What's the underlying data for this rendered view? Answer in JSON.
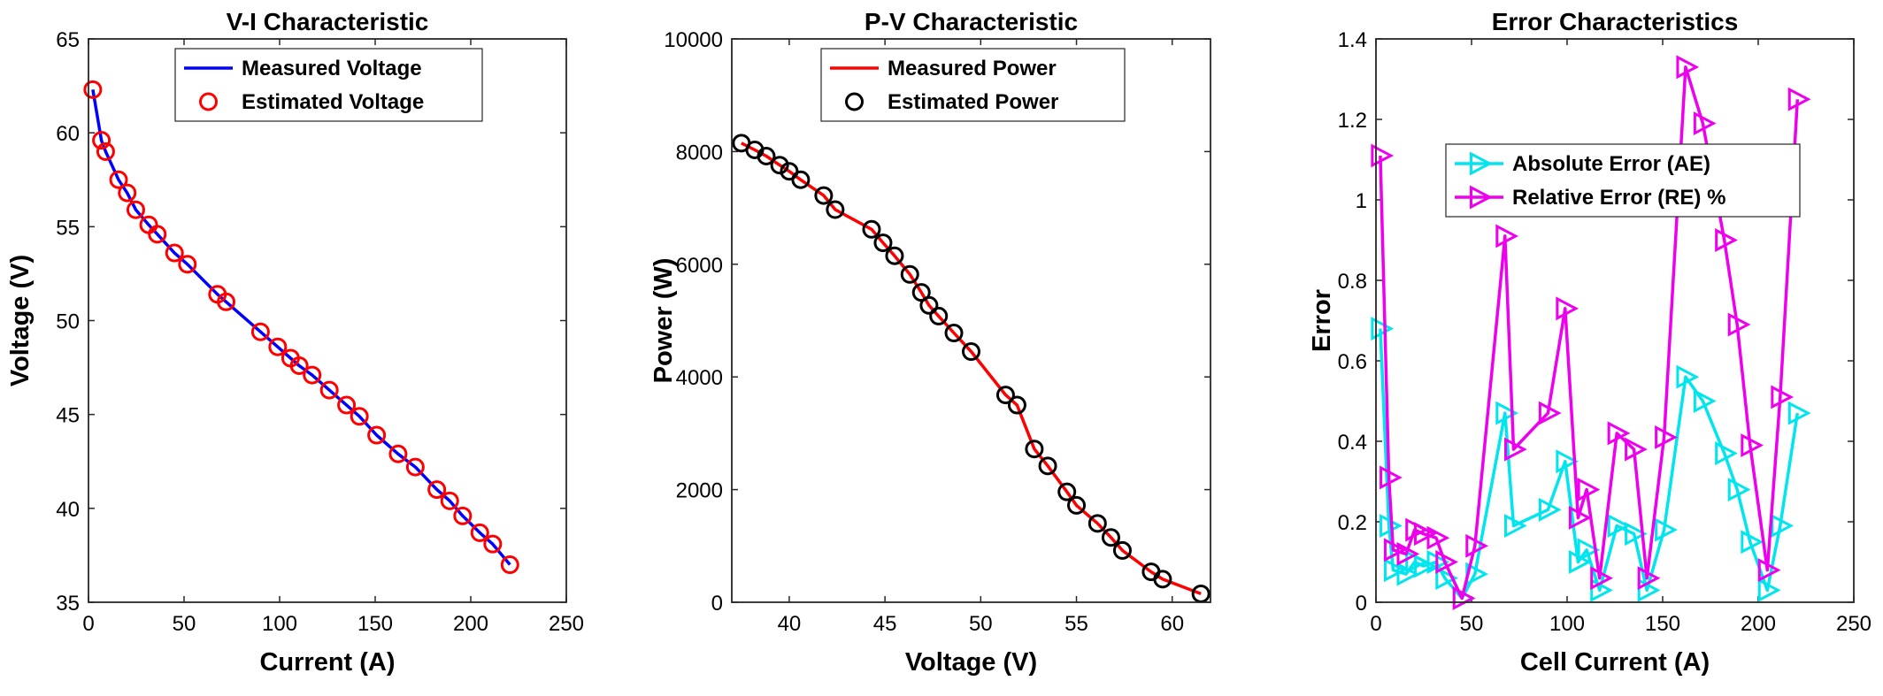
{
  "chart_data": [
    {
      "type": "scatter",
      "title": "V-I Characteristic",
      "xlabel": "Current (A)",
      "ylabel": "Voltage (V)",
      "xlim": [
        0,
        250
      ],
      "ylim": [
        35,
        65
      ],
      "xticks": [
        0,
        50,
        100,
        150,
        200,
        250
      ],
      "yticks": [
        35,
        40,
        45,
        50,
        55,
        60,
        65
      ],
      "legend_position": "top-center",
      "series": [
        {
          "name": "Measured Voltage",
          "style": "line",
          "color": "#0000ff",
          "x": [
            2.25,
            6.75,
            9,
            15.75,
            20.25,
            24.75,
            31.5,
            36,
            45,
            51.75,
            67.5,
            72,
            90,
            99,
            105.75,
            110.25,
            117,
            126,
            135,
            141.75,
            150.75,
            162,
            171,
            182.25,
            189,
            195.75,
            204.75,
            211.5,
            220.5
          ],
          "y": [
            62.3,
            59.6,
            59.0,
            57.5,
            56.8,
            55.9,
            55.1,
            54.6,
            53.6,
            53.0,
            51.4,
            51.0,
            49.4,
            48.6,
            48.0,
            47.6,
            47.1,
            46.3,
            45.5,
            44.9,
            43.9,
            42.9,
            42.2,
            41.0,
            40.4,
            39.6,
            38.7,
            38.1,
            37.0
          ]
        },
        {
          "name": "Estimated Voltage",
          "style": "marker",
          "marker": "circle",
          "color": "#ff0000",
          "x": [
            2.25,
            6.75,
            9,
            15.75,
            20.25,
            24.75,
            31.5,
            36,
            45,
            51.75,
            67.5,
            72,
            90,
            99,
            105.75,
            110.25,
            117,
            126,
            135,
            141.75,
            150.75,
            162,
            171,
            182.25,
            189,
            195.75,
            204.75,
            211.5,
            220.5
          ],
          "y": [
            62.3,
            59.6,
            59.0,
            57.5,
            56.8,
            55.9,
            55.1,
            54.6,
            53.6,
            53.0,
            51.4,
            51.0,
            49.4,
            48.6,
            48.0,
            47.6,
            47.1,
            46.3,
            45.5,
            44.9,
            43.9,
            42.9,
            42.2,
            41.0,
            40.4,
            39.6,
            38.7,
            38.1,
            37.0
          ]
        }
      ]
    },
    {
      "type": "scatter",
      "title": "P-V Characteristic",
      "xlabel": "Voltage (V)",
      "ylabel": "Power (W)",
      "xlim": [
        37,
        62
      ],
      "ylim": [
        0,
        10000
      ],
      "xticks": [
        40,
        45,
        50,
        55,
        60
      ],
      "yticks": [
        0,
        2000,
        4000,
        6000,
        8000,
        10000
      ],
      "legend_position": "top-center",
      "series": [
        {
          "name": "Measured Power",
          "style": "line",
          "color": "#ff0000",
          "x": [
            37.5,
            38.2,
            38.8,
            39.5,
            40.0,
            40.6,
            41.8,
            42.4,
            44.3,
            44.9,
            45.5,
            46.3,
            46.9,
            47.3,
            47.8,
            48.6,
            49.5,
            51.3,
            51.9,
            52.8,
            53.5,
            54.5,
            55.0,
            56.1,
            56.8,
            57.4,
            58.9,
            59.5,
            61.5
          ],
          "y": [
            8150,
            8030,
            7920,
            7760,
            7650,
            7500,
            7220,
            6970,
            6620,
            6380,
            6150,
            5820,
            5500,
            5270,
            5080,
            4780,
            4450,
            3680,
            3500,
            2720,
            2420,
            1960,
            1720,
            1400,
            1150,
            920,
            540,
            410,
            150
          ]
        },
        {
          "name": "Estimated Power",
          "style": "marker",
          "marker": "circle",
          "color": "#000000",
          "x": [
            37.5,
            38.2,
            38.8,
            39.5,
            40.0,
            40.6,
            41.8,
            42.4,
            44.3,
            44.9,
            45.5,
            46.3,
            46.9,
            47.3,
            47.8,
            48.6,
            49.5,
            51.3,
            51.9,
            52.8,
            53.5,
            54.5,
            55.0,
            56.1,
            56.8,
            57.4,
            58.9,
            59.5,
            61.5
          ],
          "y": [
            8150,
            8030,
            7920,
            7760,
            7650,
            7500,
            7220,
            6970,
            6620,
            6380,
            6150,
            5820,
            5500,
            5270,
            5080,
            4780,
            4450,
            3680,
            3500,
            2720,
            2420,
            1960,
            1720,
            1400,
            1150,
            920,
            540,
            410,
            150
          ]
        }
      ]
    },
    {
      "type": "line",
      "title": "Error Characteristics",
      "xlabel": "Cell Current (A)",
      "ylabel": "Error",
      "xlim": [
        0,
        250
      ],
      "ylim": [
        0,
        1.4
      ],
      "xticks": [
        0,
        50,
        100,
        150,
        200,
        250
      ],
      "yticks": [
        0,
        0.2,
        0.4,
        0.6,
        0.8,
        1,
        1.2,
        1.4
      ],
      "legend_position": "top-center",
      "series": [
        {
          "name": "Absolute Error (AE)",
          "color": "#00e5ee",
          "marker": "triangle-right",
          "x": [
            2.25,
            6.75,
            9,
            15.75,
            20.25,
            24.75,
            31.5,
            36,
            45,
            51.75,
            67.5,
            72,
            90,
            99,
            105.75,
            110.25,
            117,
            126,
            135,
            141.75,
            150.75,
            162,
            171,
            182.25,
            189,
            195.75,
            204.75,
            211.5,
            220.5
          ],
          "y": [
            0.68,
            0.19,
            0.08,
            0.07,
            0.1,
            0.09,
            0.1,
            0.06,
            0.01,
            0.07,
            0.47,
            0.19,
            0.23,
            0.35,
            0.1,
            0.13,
            0.03,
            0.19,
            0.17,
            0.03,
            0.18,
            0.56,
            0.5,
            0.37,
            0.28,
            0.15,
            0.03,
            0.19,
            0.47
          ]
        },
        {
          "name": "Relative Error (RE) %",
          "color": "#ee00ee",
          "marker": "triangle-right",
          "x": [
            2.25,
            6.75,
            9,
            15.75,
            20.25,
            24.75,
            31.5,
            36,
            45,
            51.75,
            67.5,
            72,
            90,
            99,
            105.75,
            110.25,
            117,
            126,
            135,
            141.75,
            150.75,
            162,
            171,
            182.25,
            189,
            195.75,
            204.75,
            211.5,
            220.5
          ],
          "y": [
            1.11,
            0.31,
            0.13,
            0.12,
            0.18,
            0.17,
            0.16,
            0.1,
            0.01,
            0.14,
            0.91,
            0.38,
            0.47,
            0.73,
            0.21,
            0.28,
            0.06,
            0.42,
            0.38,
            0.06,
            0.41,
            1.33,
            1.19,
            0.9,
            0.69,
            0.39,
            0.08,
            0.51,
            1.25
          ]
        }
      ]
    }
  ]
}
